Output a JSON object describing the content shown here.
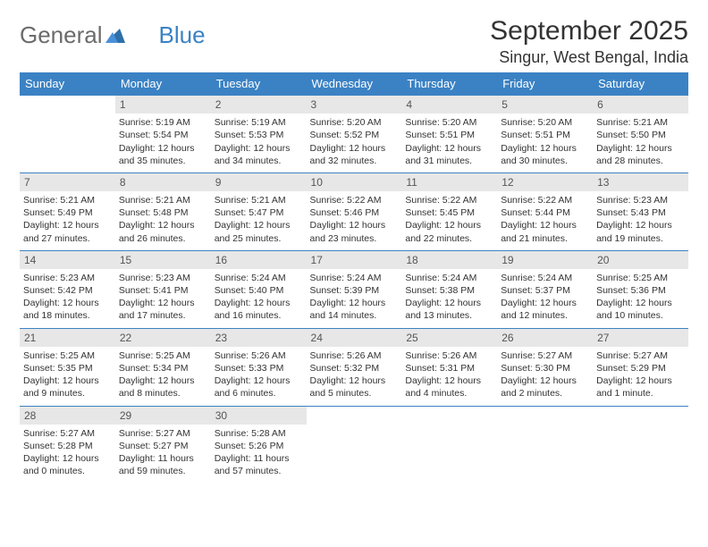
{
  "brand": {
    "general": "General",
    "blue": "Blue"
  },
  "title": "September 2025",
  "location": "Singur, West Bengal, India",
  "colors": {
    "header_bg": "#3b82c4",
    "header_text": "#ffffff",
    "daynum_bg": "#e7e7e7",
    "border": "#3b82c4",
    "body_text": "#333333"
  },
  "dow": [
    "Sunday",
    "Monday",
    "Tuesday",
    "Wednesday",
    "Thursday",
    "Friday",
    "Saturday"
  ],
  "weeks": [
    [
      {
        "n": "",
        "l1": "",
        "l2": "",
        "l3": "",
        "l4": "",
        "empty": true
      },
      {
        "n": "1",
        "l1": "Sunrise: 5:19 AM",
        "l2": "Sunset: 5:54 PM",
        "l3": "Daylight: 12 hours",
        "l4": "and 35 minutes."
      },
      {
        "n": "2",
        "l1": "Sunrise: 5:19 AM",
        "l2": "Sunset: 5:53 PM",
        "l3": "Daylight: 12 hours",
        "l4": "and 34 minutes."
      },
      {
        "n": "3",
        "l1": "Sunrise: 5:20 AM",
        "l2": "Sunset: 5:52 PM",
        "l3": "Daylight: 12 hours",
        "l4": "and 32 minutes."
      },
      {
        "n": "4",
        "l1": "Sunrise: 5:20 AM",
        "l2": "Sunset: 5:51 PM",
        "l3": "Daylight: 12 hours",
        "l4": "and 31 minutes."
      },
      {
        "n": "5",
        "l1": "Sunrise: 5:20 AM",
        "l2": "Sunset: 5:51 PM",
        "l3": "Daylight: 12 hours",
        "l4": "and 30 minutes."
      },
      {
        "n": "6",
        "l1": "Sunrise: 5:21 AM",
        "l2": "Sunset: 5:50 PM",
        "l3": "Daylight: 12 hours",
        "l4": "and 28 minutes."
      }
    ],
    [
      {
        "n": "7",
        "l1": "Sunrise: 5:21 AM",
        "l2": "Sunset: 5:49 PM",
        "l3": "Daylight: 12 hours",
        "l4": "and 27 minutes."
      },
      {
        "n": "8",
        "l1": "Sunrise: 5:21 AM",
        "l2": "Sunset: 5:48 PM",
        "l3": "Daylight: 12 hours",
        "l4": "and 26 minutes."
      },
      {
        "n": "9",
        "l1": "Sunrise: 5:21 AM",
        "l2": "Sunset: 5:47 PM",
        "l3": "Daylight: 12 hours",
        "l4": "and 25 minutes."
      },
      {
        "n": "10",
        "l1": "Sunrise: 5:22 AM",
        "l2": "Sunset: 5:46 PM",
        "l3": "Daylight: 12 hours",
        "l4": "and 23 minutes."
      },
      {
        "n": "11",
        "l1": "Sunrise: 5:22 AM",
        "l2": "Sunset: 5:45 PM",
        "l3": "Daylight: 12 hours",
        "l4": "and 22 minutes."
      },
      {
        "n": "12",
        "l1": "Sunrise: 5:22 AM",
        "l2": "Sunset: 5:44 PM",
        "l3": "Daylight: 12 hours",
        "l4": "and 21 minutes."
      },
      {
        "n": "13",
        "l1": "Sunrise: 5:23 AM",
        "l2": "Sunset: 5:43 PM",
        "l3": "Daylight: 12 hours",
        "l4": "and 19 minutes."
      }
    ],
    [
      {
        "n": "14",
        "l1": "Sunrise: 5:23 AM",
        "l2": "Sunset: 5:42 PM",
        "l3": "Daylight: 12 hours",
        "l4": "and 18 minutes."
      },
      {
        "n": "15",
        "l1": "Sunrise: 5:23 AM",
        "l2": "Sunset: 5:41 PM",
        "l3": "Daylight: 12 hours",
        "l4": "and 17 minutes."
      },
      {
        "n": "16",
        "l1": "Sunrise: 5:24 AM",
        "l2": "Sunset: 5:40 PM",
        "l3": "Daylight: 12 hours",
        "l4": "and 16 minutes."
      },
      {
        "n": "17",
        "l1": "Sunrise: 5:24 AM",
        "l2": "Sunset: 5:39 PM",
        "l3": "Daylight: 12 hours",
        "l4": "and 14 minutes."
      },
      {
        "n": "18",
        "l1": "Sunrise: 5:24 AM",
        "l2": "Sunset: 5:38 PM",
        "l3": "Daylight: 12 hours",
        "l4": "and 13 minutes."
      },
      {
        "n": "19",
        "l1": "Sunrise: 5:24 AM",
        "l2": "Sunset: 5:37 PM",
        "l3": "Daylight: 12 hours",
        "l4": "and 12 minutes."
      },
      {
        "n": "20",
        "l1": "Sunrise: 5:25 AM",
        "l2": "Sunset: 5:36 PM",
        "l3": "Daylight: 12 hours",
        "l4": "and 10 minutes."
      }
    ],
    [
      {
        "n": "21",
        "l1": "Sunrise: 5:25 AM",
        "l2": "Sunset: 5:35 PM",
        "l3": "Daylight: 12 hours",
        "l4": "and 9 minutes."
      },
      {
        "n": "22",
        "l1": "Sunrise: 5:25 AM",
        "l2": "Sunset: 5:34 PM",
        "l3": "Daylight: 12 hours",
        "l4": "and 8 minutes."
      },
      {
        "n": "23",
        "l1": "Sunrise: 5:26 AM",
        "l2": "Sunset: 5:33 PM",
        "l3": "Daylight: 12 hours",
        "l4": "and 6 minutes."
      },
      {
        "n": "24",
        "l1": "Sunrise: 5:26 AM",
        "l2": "Sunset: 5:32 PM",
        "l3": "Daylight: 12 hours",
        "l4": "and 5 minutes."
      },
      {
        "n": "25",
        "l1": "Sunrise: 5:26 AM",
        "l2": "Sunset: 5:31 PM",
        "l3": "Daylight: 12 hours",
        "l4": "and 4 minutes."
      },
      {
        "n": "26",
        "l1": "Sunrise: 5:27 AM",
        "l2": "Sunset: 5:30 PM",
        "l3": "Daylight: 12 hours",
        "l4": "and 2 minutes."
      },
      {
        "n": "27",
        "l1": "Sunrise: 5:27 AM",
        "l2": "Sunset: 5:29 PM",
        "l3": "Daylight: 12 hours",
        "l4": "and 1 minute."
      }
    ],
    [
      {
        "n": "28",
        "l1": "Sunrise: 5:27 AM",
        "l2": "Sunset: 5:28 PM",
        "l3": "Daylight: 12 hours",
        "l4": "and 0 minutes."
      },
      {
        "n": "29",
        "l1": "Sunrise: 5:27 AM",
        "l2": "Sunset: 5:27 PM",
        "l3": "Daylight: 11 hours",
        "l4": "and 59 minutes."
      },
      {
        "n": "30",
        "l1": "Sunrise: 5:28 AM",
        "l2": "Sunset: 5:26 PM",
        "l3": "Daylight: 11 hours",
        "l4": "and 57 minutes."
      },
      {
        "n": "",
        "l1": "",
        "l2": "",
        "l3": "",
        "l4": "",
        "empty": true
      },
      {
        "n": "",
        "l1": "",
        "l2": "",
        "l3": "",
        "l4": "",
        "empty": true
      },
      {
        "n": "",
        "l1": "",
        "l2": "",
        "l3": "",
        "l4": "",
        "empty": true
      },
      {
        "n": "",
        "l1": "",
        "l2": "",
        "l3": "",
        "l4": "",
        "empty": true
      }
    ]
  ]
}
